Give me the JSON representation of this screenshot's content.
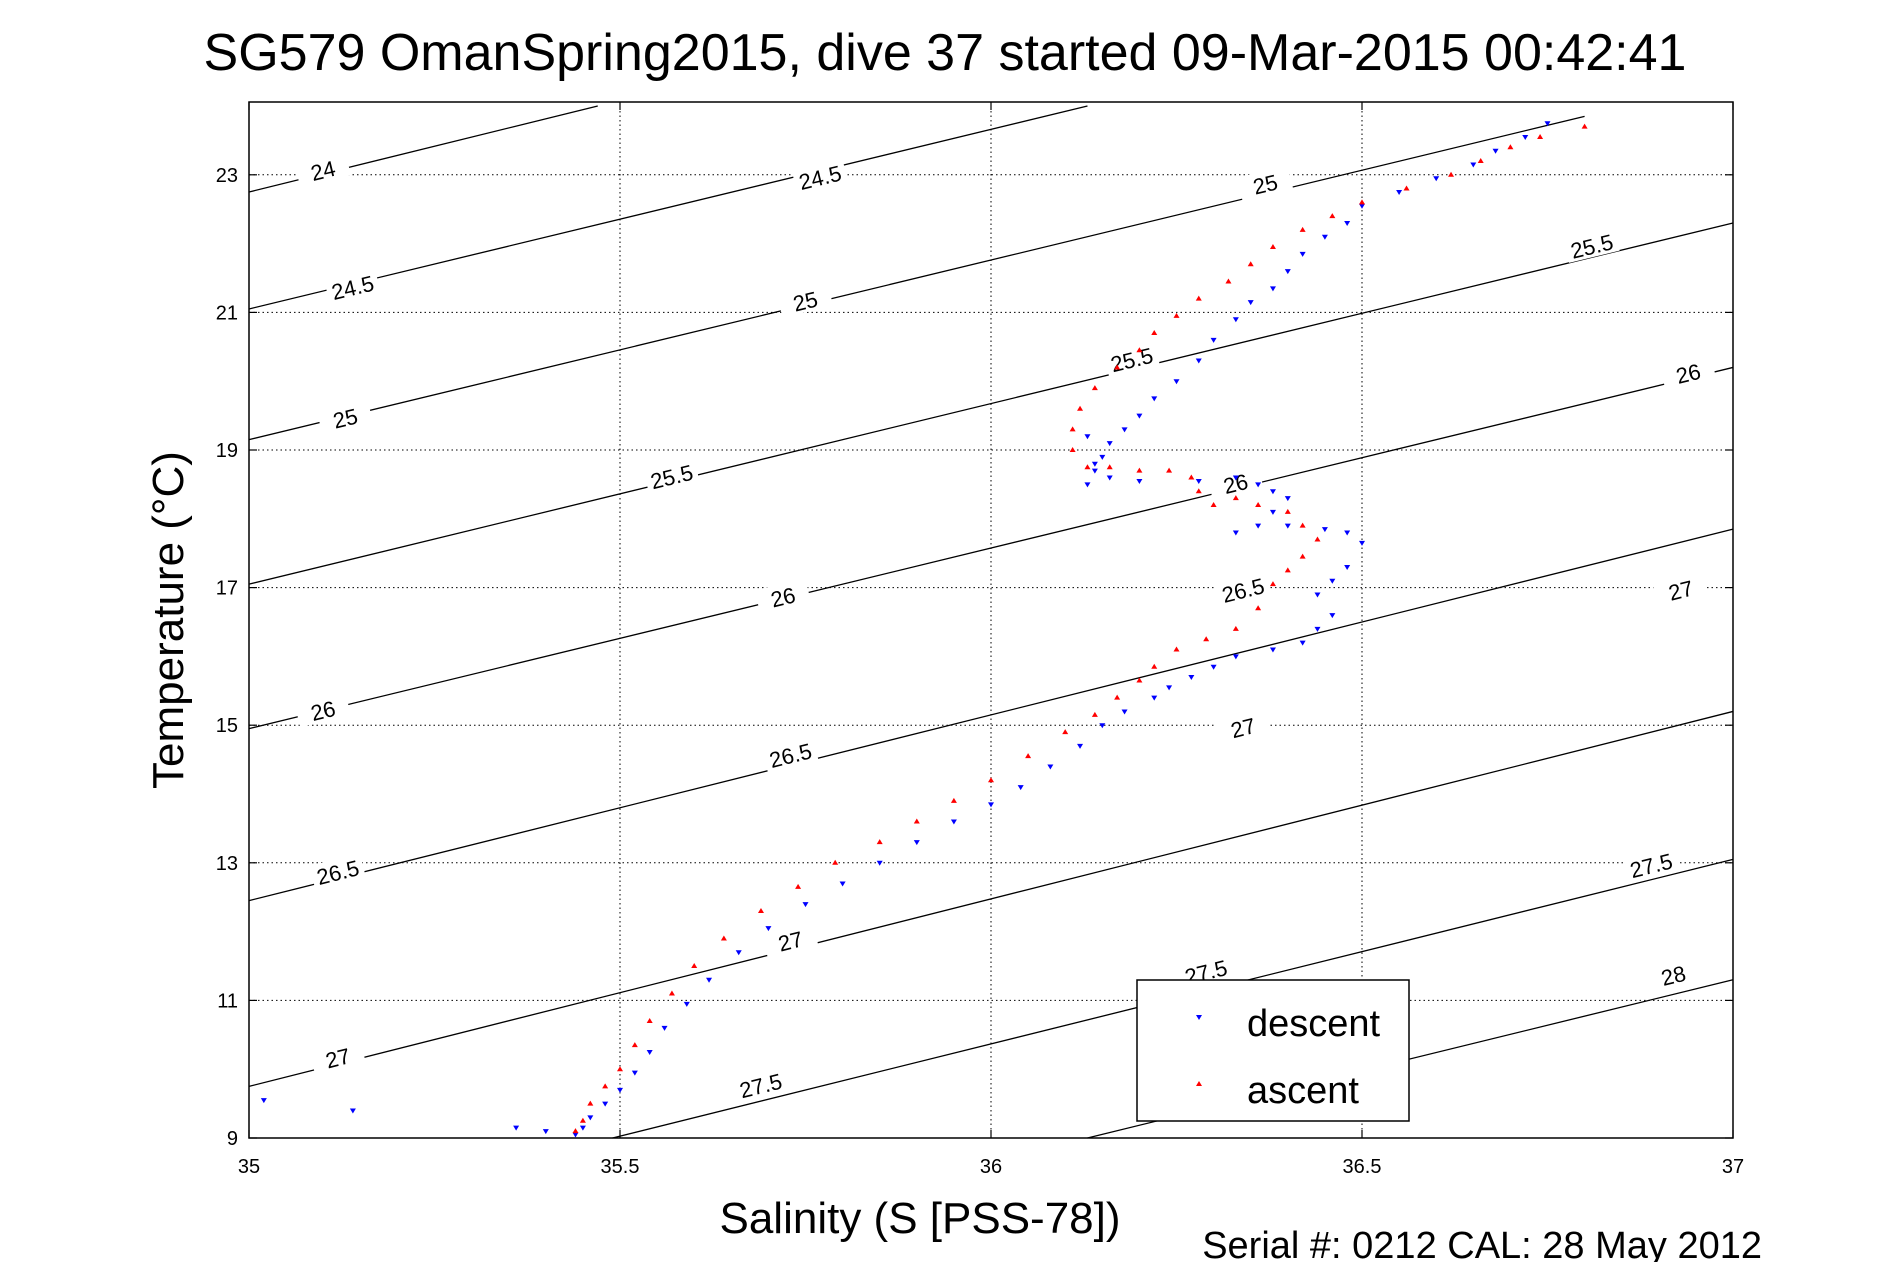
{
  "chart_data": {
    "type": "scatter",
    "title": "SG579 OmanSpring2015, dive 37 started 09-Mar-2015 00:42:41",
    "xlabel": "Salinity (S [PSS-78])",
    "ylabel": "Temperature (°C)",
    "xlim": [
      35,
      37
    ],
    "ylim": [
      9,
      24.1
    ],
    "xticks": [
      35,
      35.5,
      36,
      36.5,
      37
    ],
    "xtick_labels": [
      "35",
      "35.5",
      "36",
      "36.5",
      "37"
    ],
    "yticks": [
      9,
      11,
      13,
      15,
      17,
      19,
      21,
      23
    ],
    "ytick_labels": [
      "9",
      "11",
      "13",
      "15",
      "17",
      "19",
      "21",
      "23"
    ],
    "grid": true,
    "legend_position": "bottom-right",
    "footer": "Serial #: 0212  CAL: 28 May 2012",
    "contours": [
      {
        "label": "24",
        "segments": [
          [
            [
              35,
              22.75
            ],
            [
              35.47,
              24.0
            ]
          ]
        ],
        "labels_at": [
          [
            35.1,
            23.05
          ]
        ]
      },
      {
        "label": "24.5",
        "segments": [
          [
            [
              35,
              21.05
            ],
            [
              36.13,
              24.0
            ]
          ]
        ],
        "labels_at": [
          [
            35.14,
            21.35
          ],
          [
            35.77,
            22.95
          ]
        ]
      },
      {
        "label": "25",
        "segments": [
          [
            [
              35,
              19.15
            ],
            [
              36.8,
              23.85
            ]
          ]
        ],
        "labels_at": [
          [
            35.13,
            19.45
          ],
          [
            35.75,
            21.15
          ],
          [
            36.37,
            22.85
          ]
        ]
      },
      {
        "label": "25.5",
        "segments": [
          [
            [
              35,
              17.05
            ],
            [
              37,
              22.3
            ]
          ]
        ],
        "labels_at": [
          [
            35.57,
            18.6
          ],
          [
            36.19,
            20.3
          ],
          [
            36.81,
            21.95
          ]
        ]
      },
      {
        "label": "26",
        "segments": [
          [
            [
              35,
              14.95
            ],
            [
              37,
              20.2
            ]
          ]
        ],
        "labels_at": [
          [
            35.1,
            15.2
          ],
          [
            35.72,
            16.85
          ],
          [
            36.33,
            18.5
          ],
          [
            36.94,
            20.1
          ]
        ]
      },
      {
        "label": "26.5",
        "segments": [
          [
            [
              35,
              12.45
            ],
            [
              37,
              17.85
            ]
          ]
        ],
        "labels_at": [
          [
            35.12,
            12.85
          ],
          [
            35.73,
            14.55
          ],
          [
            36.34,
            16.95
          ]
        ]
      },
      {
        "label": "27",
        "segments": [
          [
            [
              35,
              9.75
            ],
            [
              37,
              15.2
            ]
          ]
        ],
        "labels_at": [
          [
            35.12,
            10.15
          ],
          [
            35.73,
            11.85
          ],
          [
            36.34,
            14.95
          ],
          [
            36.93,
            16.95
          ]
        ]
      },
      {
        "label": "27.5",
        "segments": [
          [
            [
              35.49,
              9.0
            ],
            [
              37,
              13.05
            ]
          ]
        ],
        "labels_at": [
          [
            35.69,
            9.75
          ],
          [
            36.29,
            11.4
          ],
          [
            36.89,
            12.95
          ]
        ]
      },
      {
        "label": "28",
        "segments": [
          [
            [
              36.13,
              9.0
            ],
            [
              37,
              11.3
            ]
          ]
        ],
        "labels_at": [
          [
            36.92,
            11.35
          ]
        ]
      }
    ],
    "series": [
      {
        "name": "descent",
        "color": "#0000ff",
        "marker": "triangle-down",
        "x": [
          36.75,
          36.72,
          36.68,
          36.65,
          36.6,
          36.55,
          36.5,
          36.48,
          36.45,
          36.42,
          36.4,
          36.38,
          36.35,
          36.33,
          36.3,
          36.28,
          36.25,
          36.22,
          36.2,
          36.18,
          36.16,
          36.15,
          36.14,
          36.13,
          36.13,
          36.14,
          36.16,
          36.2,
          36.28,
          36.33,
          36.36,
          36.38,
          36.4,
          36.38,
          36.36,
          36.33,
          36.4,
          36.45,
          36.48,
          36.5,
          36.48,
          36.46,
          36.44,
          36.46,
          36.44,
          36.42,
          36.38,
          36.33,
          36.3,
          36.27,
          36.24,
          36.22,
          36.18,
          36.15,
          36.12,
          36.08,
          36.04,
          36.0,
          35.95,
          35.9,
          35.85,
          35.8,
          35.75,
          35.7,
          35.66,
          35.62,
          35.59,
          35.56,
          35.54,
          35.52,
          35.5,
          35.48,
          35.46,
          35.45,
          35.44,
          35.4,
          35.36,
          35.14,
          35.02
        ],
        "y": [
          23.75,
          23.55,
          23.35,
          23.15,
          22.95,
          22.75,
          22.55,
          22.3,
          22.1,
          21.85,
          21.6,
          21.35,
          21.15,
          20.9,
          20.6,
          20.3,
          20.0,
          19.75,
          19.5,
          19.3,
          19.1,
          18.9,
          18.7,
          18.5,
          19.2,
          18.8,
          18.6,
          18.55,
          18.55,
          18.6,
          18.5,
          18.4,
          18.3,
          18.1,
          17.9,
          17.8,
          17.9,
          17.85,
          17.8,
          17.65,
          17.3,
          17.1,
          16.9,
          16.6,
          16.4,
          16.2,
          16.1,
          16.0,
          15.85,
          15.7,
          15.55,
          15.4,
          15.2,
          15.0,
          14.7,
          14.4,
          14.1,
          13.85,
          13.6,
          13.3,
          13.0,
          12.7,
          12.4,
          12.05,
          11.7,
          11.3,
          10.95,
          10.6,
          10.25,
          9.95,
          9.7,
          9.5,
          9.3,
          9.15,
          9.05,
          9.1,
          9.15,
          9.4,
          9.55
        ]
      },
      {
        "name": "ascent",
        "color": "#ff0000",
        "marker": "triangle-up",
        "x": [
          36.8,
          36.74,
          36.7,
          36.66,
          36.62,
          36.56,
          36.5,
          36.46,
          36.42,
          36.38,
          36.35,
          36.32,
          36.28,
          36.25,
          36.22,
          36.2,
          36.17,
          36.14,
          36.12,
          36.11,
          36.11,
          36.13,
          36.16,
          36.2,
          36.24,
          36.27,
          36.28,
          36.3,
          36.33,
          36.36,
          36.4,
          36.42,
          36.44,
          36.42,
          36.4,
          36.38,
          36.36,
          36.33,
          36.29,
          36.25,
          36.22,
          36.2,
          36.17,
          36.14,
          36.1,
          36.05,
          36.0,
          35.95,
          35.9,
          35.85,
          35.79,
          35.74,
          35.69,
          35.64,
          35.6,
          35.57,
          35.54,
          35.52,
          35.5,
          35.48,
          35.46,
          35.45,
          35.44
        ],
        "y": [
          23.7,
          23.55,
          23.4,
          23.2,
          23.0,
          22.8,
          22.6,
          22.4,
          22.2,
          21.95,
          21.7,
          21.45,
          21.2,
          20.95,
          20.7,
          20.45,
          20.2,
          19.9,
          19.6,
          19.3,
          19.0,
          18.75,
          18.75,
          18.7,
          18.7,
          18.6,
          18.4,
          18.2,
          18.3,
          18.2,
          18.1,
          17.9,
          17.7,
          17.45,
          17.25,
          17.05,
          16.7,
          16.4,
          16.25,
          16.1,
          15.85,
          15.65,
          15.4,
          15.15,
          14.9,
          14.55,
          14.2,
          13.9,
          13.6,
          13.3,
          13.0,
          12.65,
          12.3,
          11.9,
          11.5,
          11.1,
          10.7,
          10.35,
          10.0,
          9.75,
          9.5,
          9.25,
          9.1
        ]
      }
    ]
  }
}
